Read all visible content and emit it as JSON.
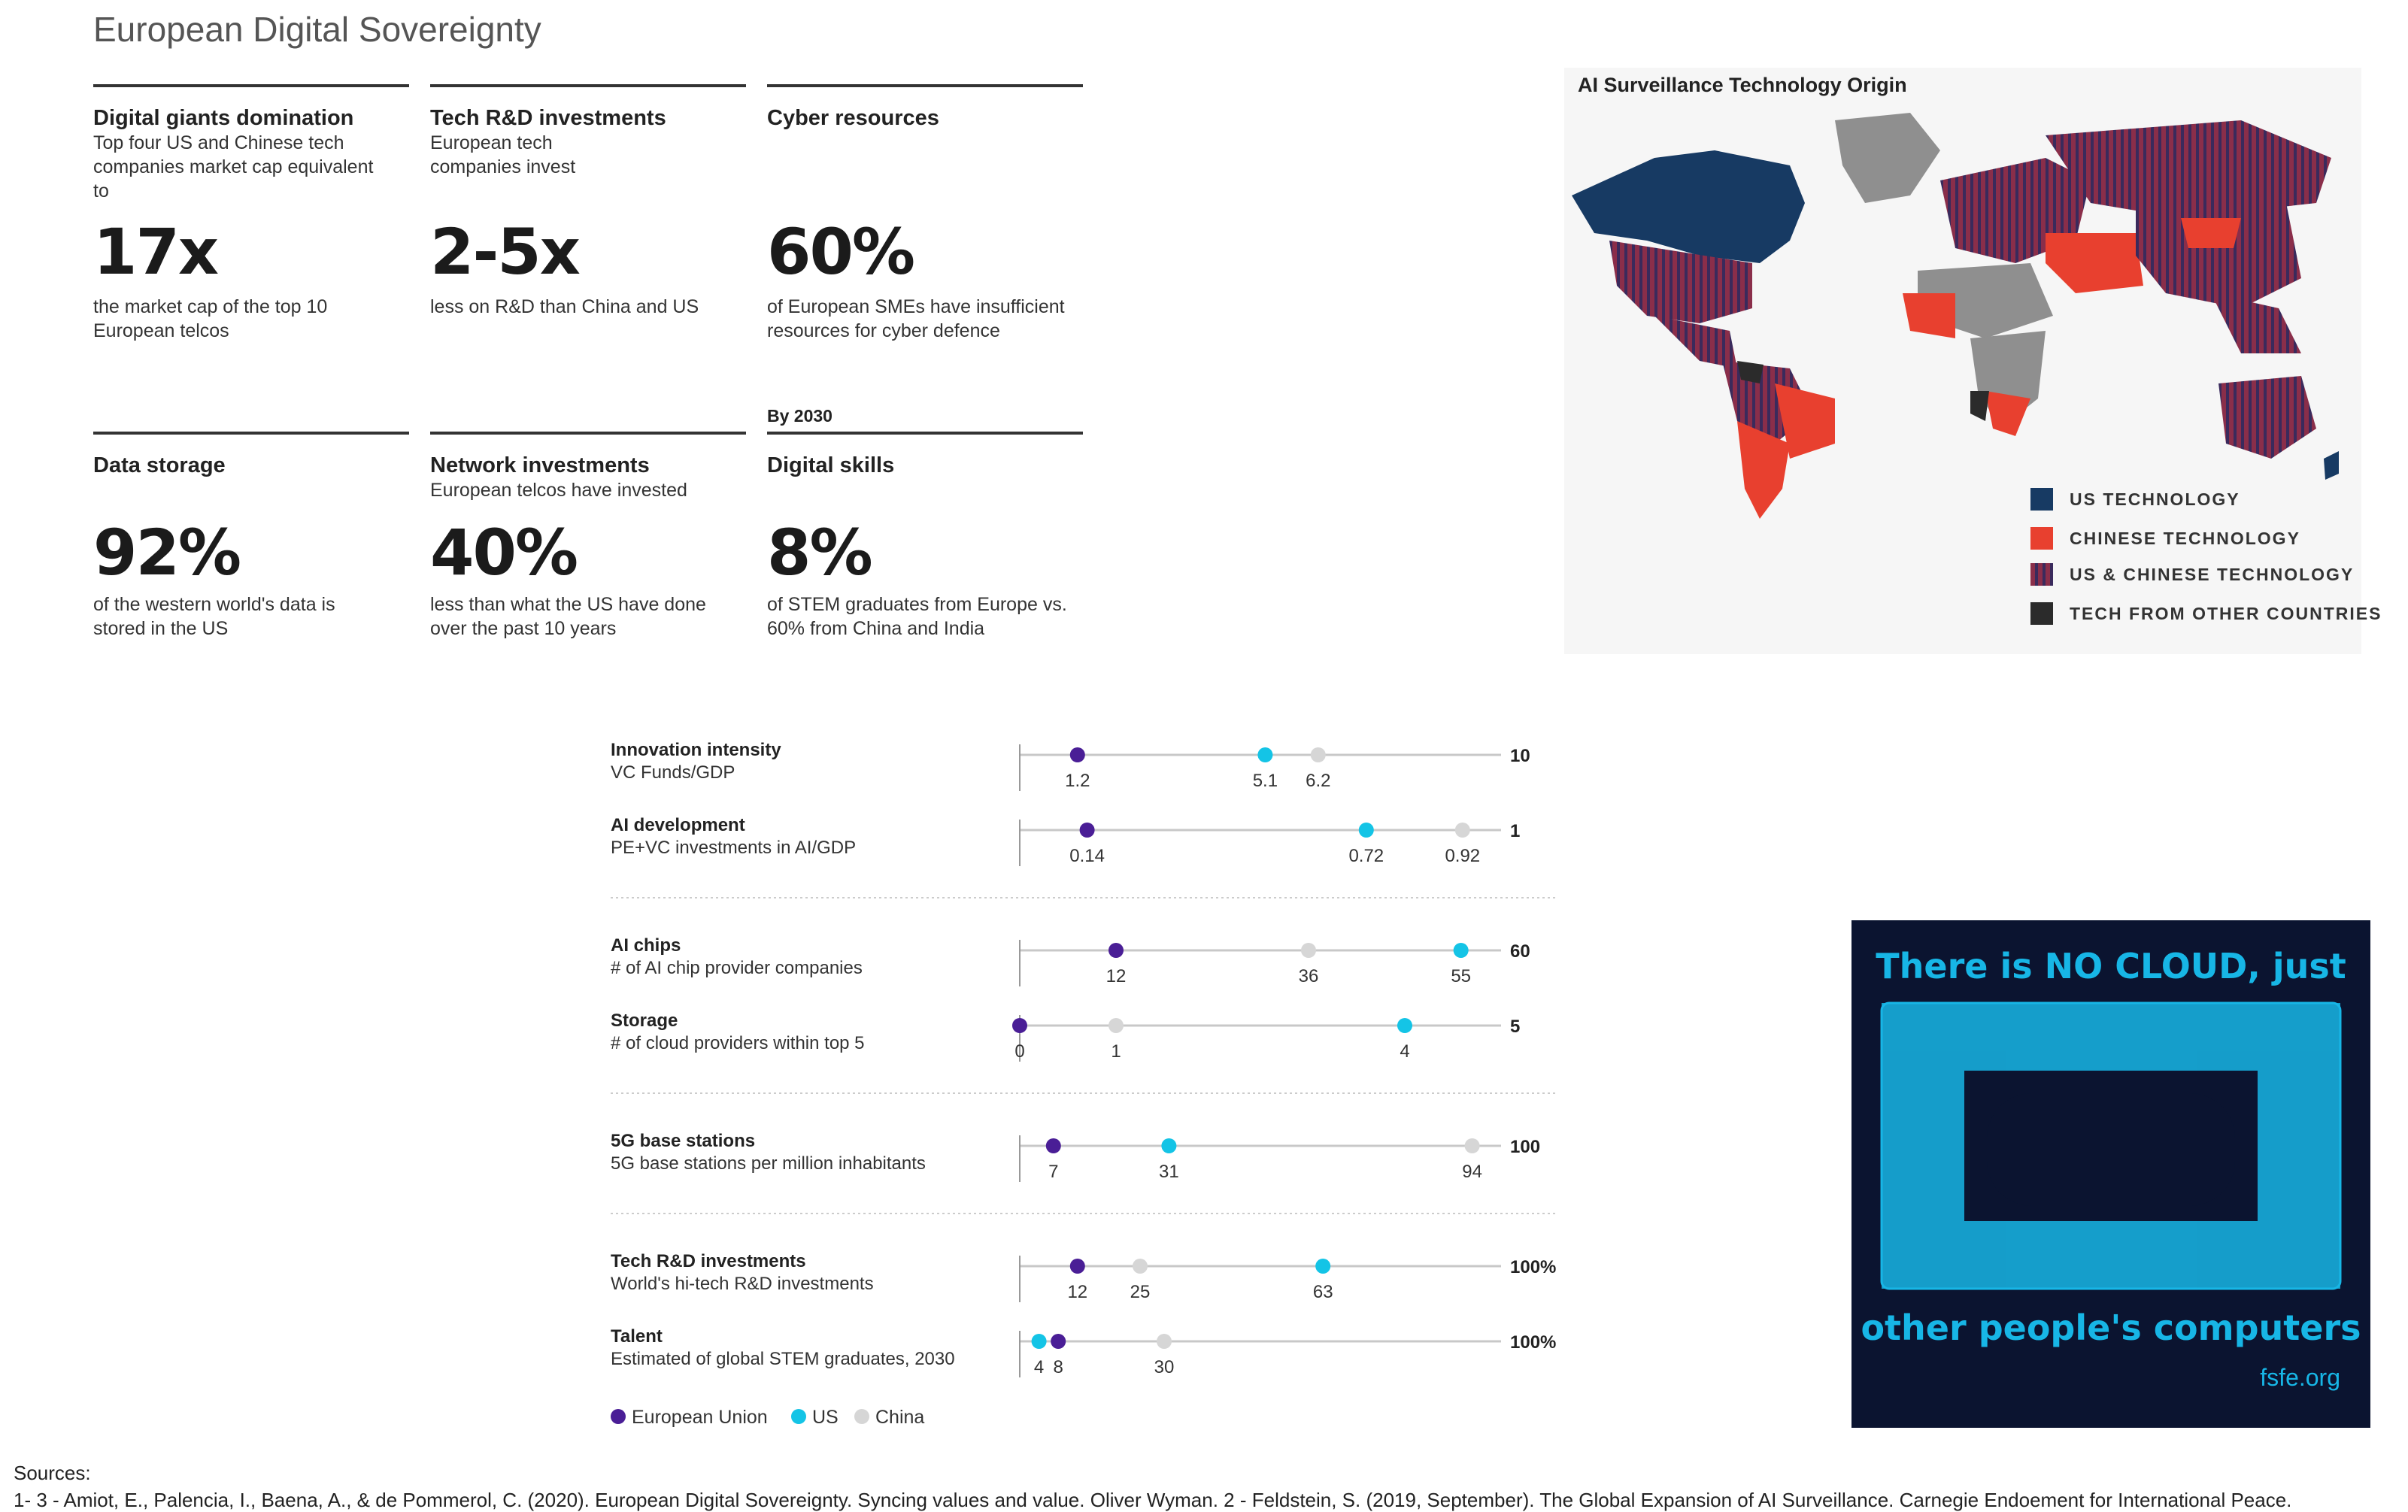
{
  "page": {
    "title": "European Digital Sovereignty"
  },
  "cards": [
    {
      "title": "Digital giants domination",
      "subtitle": "Top four US and Chinese tech companies market cap equivalent to",
      "value": "17x",
      "description": "the market cap of the top 10 European telcos"
    },
    {
      "title": "Tech R&D investments",
      "subtitle": "European tech companies invest",
      "value": "2-5x",
      "description": "less on R&D than China and US"
    },
    {
      "title": "Cyber resources",
      "subtitle": "",
      "value": "60%",
      "description": "of European SMEs have insufficient resources for cyber defence"
    },
    {
      "title": "Data storage",
      "subtitle": "",
      "value": "92%",
      "description": "of the western world's data is stored in the US"
    },
    {
      "title": "Network investments",
      "subtitle": "European telcos have invested",
      "value": "40%",
      "description": "less than what the US have done over the past 10 years"
    },
    {
      "title": "Digital skills",
      "pretitle": "By 2030",
      "subtitle": "",
      "value": "8%",
      "description": "of STEM graduates from Europe vs. 60% from China and India"
    }
  ],
  "map": {
    "title": "AI Surveillance Technology Origin",
    "legend": [
      {
        "label": "US TECHNOLOGY",
        "color": "#173a63"
      },
      {
        "label": "CHINESE TECHNOLOGY",
        "color": "#e8402f"
      },
      {
        "label": "US & CHINESE TECHNOLOGY",
        "color": "#8a2e4a"
      },
      {
        "label": "TECH FROM OTHER COUNTRIES",
        "color": "#2b2b2b"
      }
    ]
  },
  "chart_data": {
    "type": "scatter",
    "series_colors": {
      "European Union": "#4a1e96",
      "US": "#14c4e6",
      "China": "#d6d6d6"
    },
    "legend": [
      "European Union",
      "US",
      "China"
    ],
    "rows": [
      {
        "title": "Innovation intensity",
        "subtitle": "VC Funds/GDP",
        "max": 10,
        "max_label": "10",
        "points": {
          "European Union": 1.2,
          "US": 5.1,
          "China": 6.2
        },
        "labels": {
          "European Union": "1.2",
          "US": "5.1",
          "China": "6.2"
        }
      },
      {
        "title": "AI development",
        "subtitle": "PE+VC investments in AI/GDP",
        "max": 1,
        "max_label": "1",
        "points": {
          "European Union": 0.14,
          "US": 0.72,
          "China": 0.92
        },
        "labels": {
          "European Union": "0.14",
          "US": "0.72",
          "China": "0.92"
        }
      },
      {
        "title": "AI chips",
        "subtitle": "# of AI chip provider companies",
        "max": 60,
        "max_label": "60",
        "points": {
          "European Union": 12,
          "US": 55,
          "China": 36
        },
        "labels": {
          "European Union": "12",
          "US": "55",
          "China": "36"
        }
      },
      {
        "title": "Storage",
        "subtitle": "# of cloud providers within top 5",
        "max": 5,
        "max_label": "5",
        "points": {
          "European Union": 0,
          "US": 4,
          "China": 1
        },
        "labels": {
          "European Union": "0",
          "US": "4",
          "China": "1"
        }
      },
      {
        "title": "5G base stations",
        "subtitle": "5G base stations per million inhabitants",
        "max": 100,
        "max_label": "100",
        "points": {
          "European Union": 7,
          "US": 31,
          "China": 94
        },
        "labels": {
          "European Union": "7",
          "US": "31",
          "China": "94"
        }
      },
      {
        "title": "Tech R&D investments",
        "subtitle": "World's hi-tech R&D investments",
        "max": 100,
        "max_label": "100%",
        "points": {
          "European Union": 12,
          "US": 63,
          "China": 25
        },
        "labels": {
          "European Union": "12",
          "US": "63",
          "China": "25"
        }
      },
      {
        "title": "Talent",
        "subtitle": "Estimated of global STEM graduates, 2030",
        "max": 100,
        "max_label": "100%",
        "points": {
          "European Union": 8,
          "US": 4,
          "China": 30
        },
        "labels": {
          "European Union": "8",
          "US": "4",
          "China": "30"
        }
      }
    ]
  },
  "poster": {
    "top_text": "There is NO CLOUD, just",
    "bottom_text": "other people's computers",
    "brand": "fsfe.org"
  },
  "sources": {
    "heading": "Sources:",
    "text": "1- 3 - Amiot, E., Palencia, I., Baena, A., & de Pommerol, C. (2020). European Digital Sovereignty. Syncing values and value. Oliver Wyman.  2 - Feldstein, S. (2019, September). The Global Expansion of AI Surveillance. Carnegie Endoement for International Peace."
  }
}
